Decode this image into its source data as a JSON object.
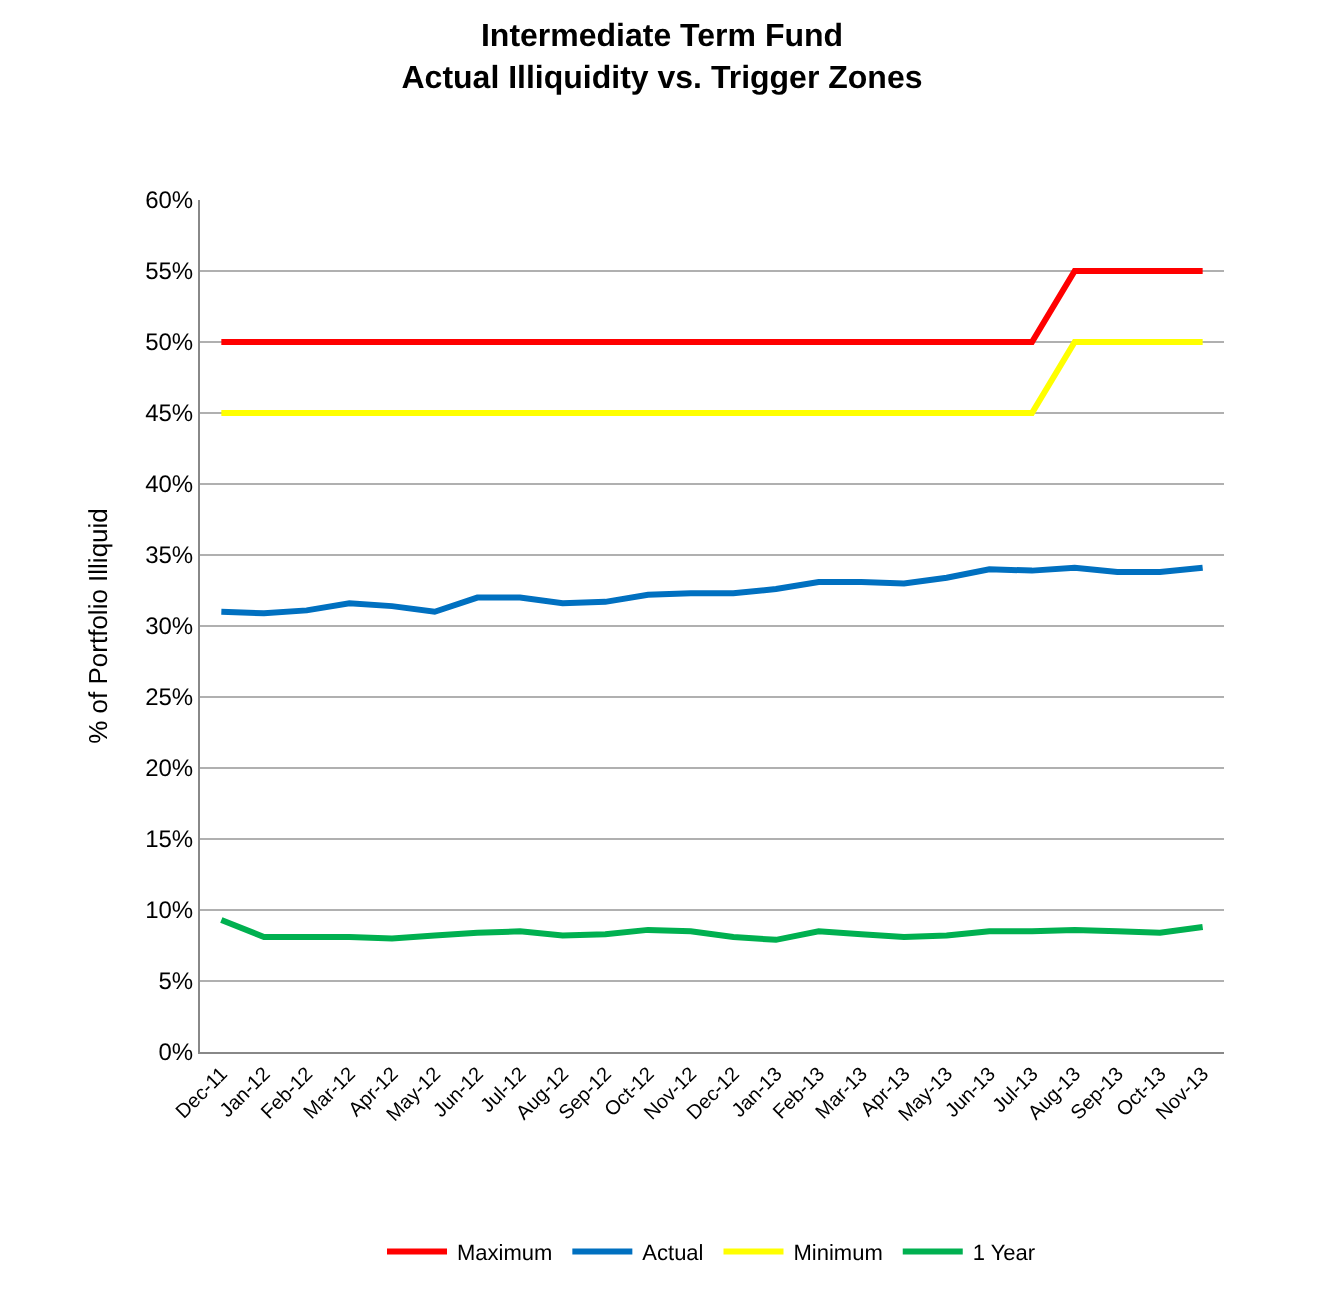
{
  "chart_data": {
    "type": "line",
    "title": "Intermediate Term Fund\nActual Illiquidity vs. Trigger Zones",
    "ylabel": "% of Portfolio Illiquid",
    "categories": [
      "Dec-11",
      "Jan-12",
      "Feb-12",
      "Mar-12",
      "Apr-12",
      "May-12",
      "Jun-12",
      "Jul-12",
      "Aug-12",
      "Sep-12",
      "Oct-12",
      "Nov-12",
      "Dec-12",
      "Jan-13",
      "Feb-13",
      "Mar-13",
      "Apr-13",
      "May-13",
      "Jun-13",
      "Jul-13",
      "Aug-13",
      "Sep-13",
      "Oct-13",
      "Nov-13"
    ],
    "series": [
      {
        "name": "Maximum",
        "color": "#ff0000",
        "values": [
          50,
          50,
          50,
          50,
          50,
          50,
          50,
          50,
          50,
          50,
          50,
          50,
          50,
          50,
          50,
          50,
          50,
          50,
          50,
          50,
          55,
          55,
          55,
          55
        ]
      },
      {
        "name": "Actual",
        "color": "#0070c0",
        "values": [
          31.0,
          30.9,
          31.1,
          31.6,
          31.4,
          31.0,
          32.0,
          32.0,
          31.6,
          31.7,
          32.2,
          32.3,
          32.3,
          32.6,
          33.1,
          33.1,
          33.0,
          33.4,
          34.0,
          33.9,
          34.1,
          33.8,
          33.8,
          34.1
        ]
      },
      {
        "name": "Minimum",
        "color": "#ffff00",
        "values": [
          45,
          45,
          45,
          45,
          45,
          45,
          45,
          45,
          45,
          45,
          45,
          45,
          45,
          45,
          45,
          45,
          45,
          45,
          45,
          45,
          50,
          50,
          50,
          50
        ]
      },
      {
        "name": "1 Year",
        "color": "#00b050",
        "values": [
          9.3,
          8.1,
          8.1,
          8.1,
          8.0,
          8.2,
          8.4,
          8.5,
          8.2,
          8.3,
          8.6,
          8.5,
          8.1,
          7.9,
          8.5,
          8.3,
          8.1,
          8.2,
          8.5,
          8.5,
          8.6,
          8.5,
          8.4,
          8.8
        ]
      }
    ],
    "ylim": [
      0,
      60
    ],
    "yticks": [
      {
        "value": 0,
        "label": "0%"
      },
      {
        "value": 5,
        "label": "5%"
      },
      {
        "value": 10,
        "label": "10%"
      },
      {
        "value": 15,
        "label": "15%"
      },
      {
        "value": 20,
        "label": "20%"
      },
      {
        "value": 25,
        "label": "25%"
      },
      {
        "value": 30,
        "label": "30%"
      },
      {
        "value": 35,
        "label": "35%"
      },
      {
        "value": 40,
        "label": "40%"
      },
      {
        "value": 45,
        "label": "45%"
      },
      {
        "value": 50,
        "label": "50%"
      },
      {
        "value": 55,
        "label": "55%"
      },
      {
        "value": 60,
        "label": "60%"
      }
    ],
    "grid": "y",
    "legend": "bottom",
    "marker": "none",
    "line_style": "solid"
  }
}
